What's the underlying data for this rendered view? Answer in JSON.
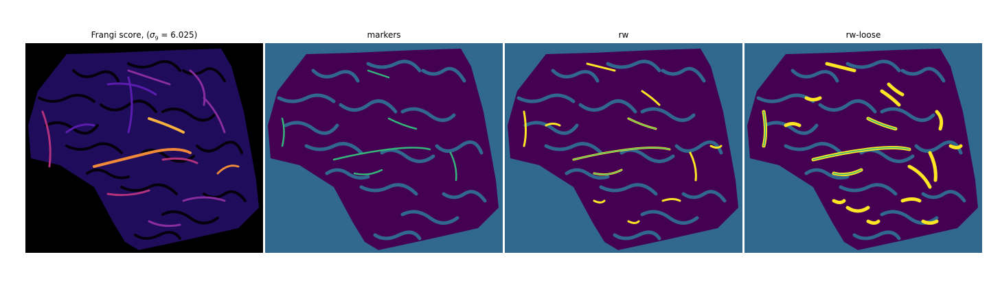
{
  "panels": [
    {
      "title_prefix": "Frangi score, (",
      "title_sigma": "σ",
      "title_sub": "9",
      "title_suffix": " = 6.025)"
    },
    {
      "title": "markers"
    },
    {
      "title": "rw"
    },
    {
      "title": "rw-loose"
    }
  ],
  "colors": {
    "frangi_background": "#000000",
    "frangi_tissue": "#1f0c5a",
    "frangi_vessel_low": "#5a1db0",
    "frangi_vessel_mid": "#b2327e",
    "frangi_vessel_high": "#f9b13f",
    "label_background": "#31688e",
    "label_tissue": "#440154",
    "label_marker": "#35b779",
    "label_vessel": "#fde725"
  }
}
